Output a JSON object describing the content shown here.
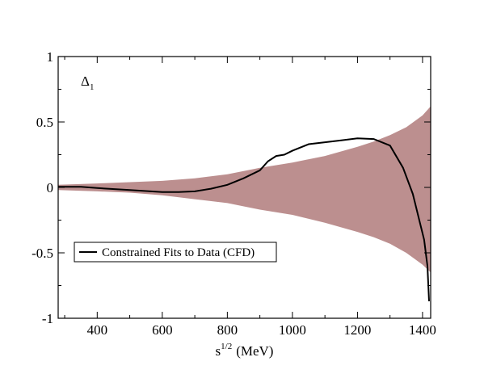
{
  "chart_data": {
    "type": "line",
    "title": "",
    "xlabel": "s",
    "xlabel_superscript": "1/2",
    "xlabel_unit": "(MeV)",
    "xlim": [
      280,
      1425
    ],
    "ylim": [
      -1,
      1
    ],
    "xticks": [
      400,
      600,
      800,
      1000,
      1200,
      1400
    ],
    "xtick_labels": [
      "400",
      "600",
      "800",
      "1000",
      "1200",
      "1400"
    ],
    "yticks": [
      -1,
      -0.5,
      0,
      0.5,
      1
    ],
    "ytick_labels": [
      "-1",
      "-0.5",
      "0",
      "0.5",
      "1"
    ],
    "grid": false,
    "annotation": {
      "symbol": "Δ",
      "subscript": "1"
    },
    "legend": {
      "placement": "bottom-left",
      "entries": [
        "Constrained Fits to Data (CFD)"
      ]
    },
    "band": {
      "color": "#bc8f8f",
      "x": [
        280,
        400,
        500,
        600,
        700,
        800,
        900,
        1000,
        1100,
        1200,
        1250,
        1300,
        1350,
        1400,
        1425
      ],
      "upper": [
        0.02,
        0.03,
        0.04,
        0.05,
        0.07,
        0.1,
        0.15,
        0.19,
        0.24,
        0.31,
        0.35,
        0.4,
        0.46,
        0.55,
        0.62
      ],
      "lower": [
        -0.02,
        -0.03,
        -0.04,
        -0.06,
        -0.09,
        -0.12,
        -0.17,
        -0.21,
        -0.27,
        -0.34,
        -0.38,
        -0.43,
        -0.5,
        -0.59,
        -0.65
      ]
    },
    "series": [
      {
        "name": "Constrained Fits to Data (CFD)",
        "color": "#000000",
        "x": [
          280,
          350,
          400,
          500,
          600,
          650,
          700,
          750,
          800,
          850,
          900,
          925,
          950,
          975,
          1000,
          1050,
          1100,
          1150,
          1200,
          1250,
          1300,
          1340,
          1370,
          1390,
          1405,
          1415,
          1420
        ],
        "y": [
          0.005,
          0.005,
          -0.005,
          -0.02,
          -0.035,
          -0.035,
          -0.03,
          -0.01,
          0.02,
          0.07,
          0.13,
          0.2,
          0.24,
          0.25,
          0.28,
          0.33,
          0.345,
          0.36,
          0.375,
          0.37,
          0.32,
          0.15,
          -0.05,
          -0.25,
          -0.4,
          -0.6,
          -0.87
        ]
      }
    ]
  }
}
